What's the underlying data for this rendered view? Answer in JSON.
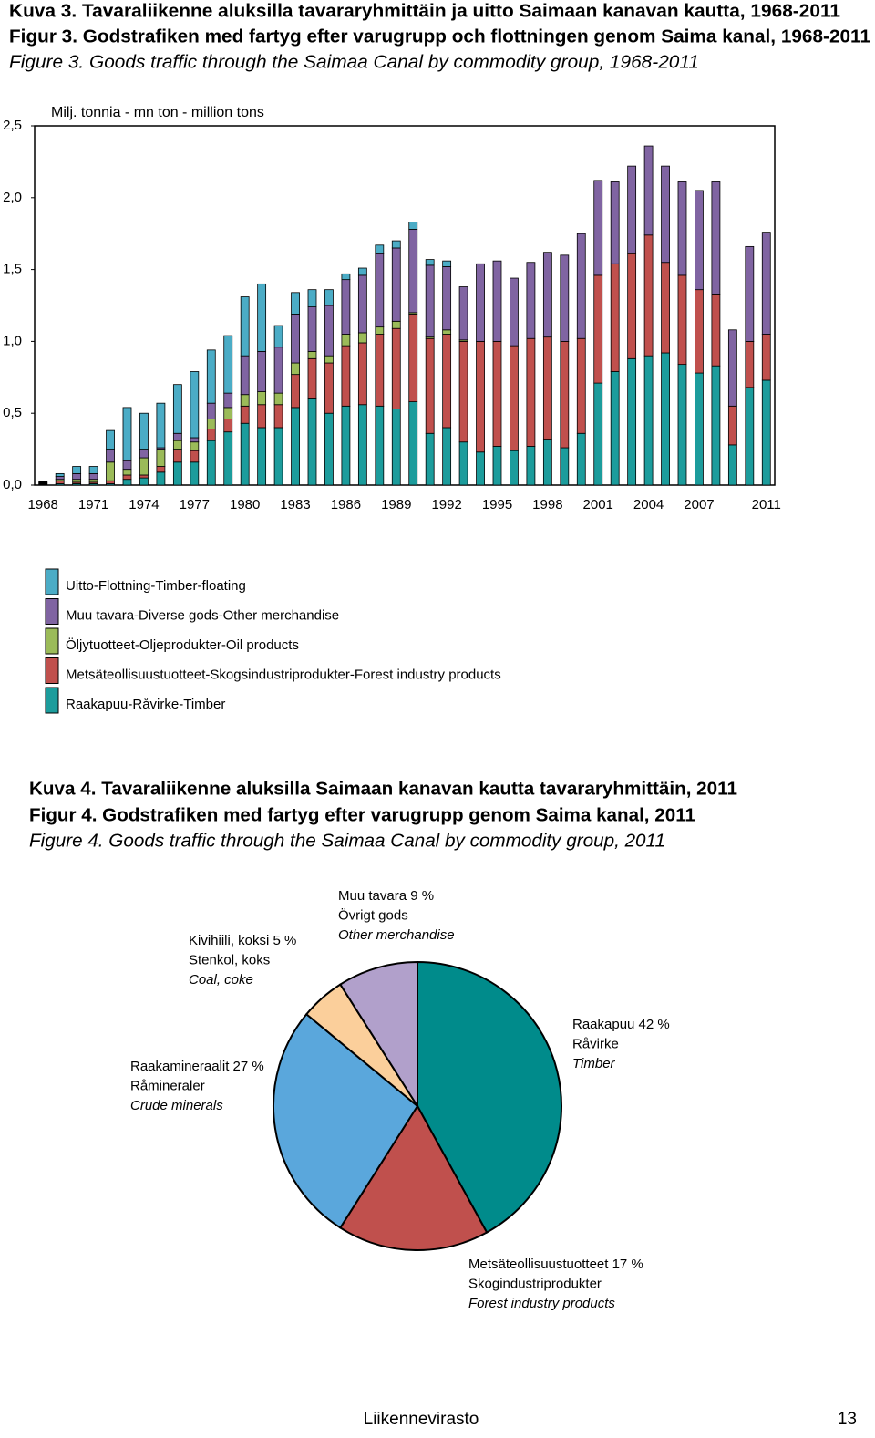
{
  "chart_data": [
    {
      "type": "stacked-bar",
      "titles": [
        "Kuva 3. Tavaraliikenne aluksilla tavararyhmittäin ja uitto Saimaan kanavan kautta, 1968-2011",
        "Figur 3. Godstrafiken med fartyg efter varugrupp och flottningen genom Saima kanal, 1968-2011",
        "Figure 3. Goods traffic through the Saimaa Canal by commodity group, 1968-2011"
      ],
      "y_label": "Milj. tonnia - mn ton - million tons",
      "categories": [
        "1968",
        null,
        null,
        "1971",
        null,
        null,
        "1974",
        null,
        null,
        "1977",
        null,
        null,
        "1980",
        null,
        null,
        "1983",
        null,
        null,
        "1986",
        null,
        null,
        "1989",
        null,
        null,
        "1992",
        null,
        null,
        "1995",
        null,
        null,
        "1998",
        null,
        null,
        "2001",
        null,
        null,
        "2004",
        null,
        null,
        "2007",
        null,
        null,
        null,
        "2011"
      ],
      "ylim": [
        0,
        2.5
      ],
      "yticks": [
        {
          "value": 0,
          "label": "0,0"
        },
        {
          "value": 0.5,
          "label": "0,5"
        },
        {
          "value": 1,
          "label": "1,0"
        },
        {
          "value": 1.5,
          "label": "1,5"
        },
        {
          "value": 2,
          "label": "2,0"
        },
        {
          "value": 2.5,
          "label": "2,5"
        }
      ],
      "series": [
        {
          "name": "Raakapuu-Råvirke-Timber",
          "color": "#1c9c9c",
          "values": [
            0.005,
            0.01,
            0.01,
            0.01,
            0.01,
            0.04,
            0.05,
            0.09,
            0.16,
            0.16,
            0.31,
            0.37,
            0.43,
            0.4,
            0.4,
            0.54,
            0.6,
            0.5,
            0.55,
            0.56,
            0.55,
            0.53,
            0.58,
            0.36,
            0.4,
            0.3,
            0.23,
            0.27,
            0.24,
            0.27,
            0.32,
            0.26,
            0.36,
            0.71,
            0.79,
            0.88,
            0.9,
            0.92,
            0.84,
            0.78,
            0.83,
            0.28,
            0.68,
            0.73
          ]
        },
        {
          "name": "Metsäteollisuustuotteet-Skogsindustriprodukter-Forest industry products",
          "color": "#c0504d",
          "values": [
            0.005,
            0.02,
            0.01,
            0.01,
            0.02,
            0.03,
            0.02,
            0.04,
            0.09,
            0.08,
            0.08,
            0.09,
            0.12,
            0.16,
            0.16,
            0.23,
            0.28,
            0.35,
            0.42,
            0.43,
            0.5,
            0.56,
            0.61,
            0.66,
            0.65,
            0.7,
            0.77,
            0.73,
            0.73,
            0.75,
            0.71,
            0.74,
            0.66,
            0.75,
            0.75,
            0.73,
            0.84,
            0.63,
            0.62,
            0.58,
            0.5,
            0.27,
            0.32,
            0.32
          ]
        },
        {
          "name": "Öljytuotteet-Oljeprodukter-Oil products",
          "color": "#9bbb59",
          "values": [
            0.005,
            0.01,
            0.02,
            0.02,
            0.13,
            0.04,
            0.12,
            0.12,
            0.06,
            0.06,
            0.07,
            0.08,
            0.08,
            0.09,
            0.08,
            0.08,
            0.05,
            0.05,
            0.08,
            0.07,
            0.05,
            0.05,
            0.01,
            0.01,
            0.03,
            0.01,
            0,
            0,
            0,
            0,
            0,
            0,
            0,
            0,
            0,
            0,
            0,
            0,
            0,
            0,
            0,
            0,
            0,
            0
          ]
        },
        {
          "name": "Muu tavara-Diverse gods-Other merchandise",
          "color": "#8064a2",
          "values": [
            0.005,
            0.02,
            0.04,
            0.04,
            0.09,
            0.06,
            0.06,
            0.01,
            0.05,
            0.03,
            0.11,
            0.1,
            0.27,
            0.28,
            0.32,
            0.34,
            0.31,
            0.35,
            0.38,
            0.4,
            0.51,
            0.51,
            0.58,
            0.5,
            0.44,
            0.37,
            0.54,
            0.56,
            0.47,
            0.53,
            0.59,
            0.6,
            0.73,
            0.66,
            0.57,
            0.61,
            0.62,
            0.67,
            0.65,
            0.69,
            0.78,
            0.53,
            0.66,
            0.71
          ]
        },
        {
          "name": "Uitto-Flottning-Timber-floating",
          "color": "#4bacc6",
          "values": [
            0.005,
            0.02,
            0.05,
            0.05,
            0.13,
            0.37,
            0.25,
            0.31,
            0.34,
            0.46,
            0.37,
            0.4,
            0.41,
            0.47,
            0.15,
            0.15,
            0.12,
            0.11,
            0.04,
            0.05,
            0.06,
            0.05,
            0.05,
            0.04,
            0.04,
            0,
            0,
            0,
            0,
            0,
            0,
            0,
            0,
            0,
            0,
            0,
            0,
            0,
            0,
            0,
            0,
            0,
            0,
            0
          ]
        }
      ]
    },
    {
      "type": "pie",
      "titles": [
        "Kuva 4. Tavaraliikenne aluksilla Saimaan kanavan kautta tavararyhmittäin, 2011",
        "Figur 4. Godstrafiken med fartyg efter varugrupp genom Saima kanal, 2011",
        "Figure 4. Goods traffic through the Saimaa Canal by commodity group, 2011"
      ],
      "values": [
        42,
        17,
        27,
        5,
        9
      ],
      "colors": [
        "#008b8b",
        "#c0504d",
        "#5aa7dc",
        "#fbcf9b",
        "#b1a0cb"
      ],
      "labels": [
        [
          "Raakapuu 42  %",
          "Råvirke",
          "Timber"
        ],
        [
          "Metsäteollisuustuotteet 17 %",
          "Skogindustriprodukter",
          "Forest industry products"
        ],
        [
          "Raakamineraalit 27 %",
          "Råmineraler",
          "Crude minerals"
        ],
        [
          "Kivihiili, koksi 5 %",
          "Stenkol, koks",
          "Coal, coke"
        ],
        [
          "Muu tavara 9 %",
          "Övrigt gods",
          "Other merchandise"
        ]
      ]
    }
  ],
  "footer": {
    "publisher": "Liikennevirasto",
    "page": "13"
  }
}
